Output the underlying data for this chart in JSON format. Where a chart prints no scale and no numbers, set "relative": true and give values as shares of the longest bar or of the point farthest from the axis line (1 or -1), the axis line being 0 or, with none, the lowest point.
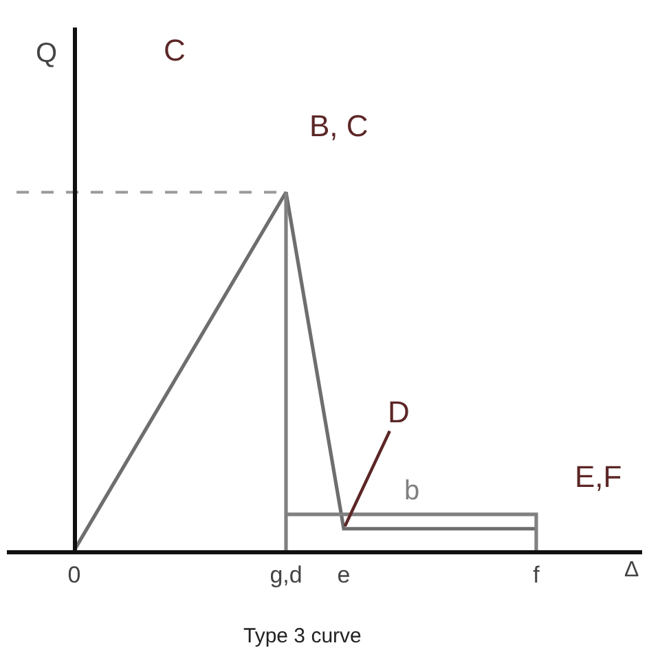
{
  "chart_data": {
    "type": "line",
    "title": "Type 3 curve",
    "xlabel": "Δ",
    "ylabel": "Q",
    "relative": true,
    "tick_labels": "x",
    "categories": [
      null,
      null,
      null,
      "0",
      null,
      null,
      null,
      null,
      null,
      null,
      null,
      null,
      null,
      null,
      "g,d",
      null,
      null,
      "e",
      null,
      null,
      null,
      null,
      null,
      null,
      null,
      null,
      null,
      "f",
      null,
      null,
      null,
      null,
      null
    ],
    "annotations": [
      "C",
      {
        "text": "B, C",
        "x": "g,d",
        "y": 1
      },
      {
        "text": "D",
        "x": "e",
        "y": 0.06
      },
      {
        "text": "E,F",
        "x": "f",
        "y": 0.06
      }
    ],
    "series": [
      {
        "x": [
          "0",
          "g,d",
          "e",
          "f"
        ],
        "values": [
          0,
          1,
          0.06,
          0.06
        ],
        "color": "#6e6e6e"
      },
      {
        "name": "b",
        "x": [
          "g,d",
          "f",
          "f"
        ],
        "values": [
          0.1,
          0.1,
          0
        ],
        "color": "#808080"
      },
      {
        "x": [
          "g,d",
          "g,d"
        ],
        "values": [
          1,
          0
        ],
        "color": "#808080"
      },
      {
        "values": [
          1,
          1,
          1,
          1,
          1,
          1,
          1,
          1,
          1,
          1,
          1,
          1,
          1,
          1,
          1,
          null,
          null,
          null,
          null,
          null,
          null,
          null,
          null,
          null,
          null,
          null,
          null,
          null,
          null,
          null,
          null,
          null,
          null
        ],
        "color": "#9a9a9a",
        "line_style": "dashed"
      }
    ]
  }
}
